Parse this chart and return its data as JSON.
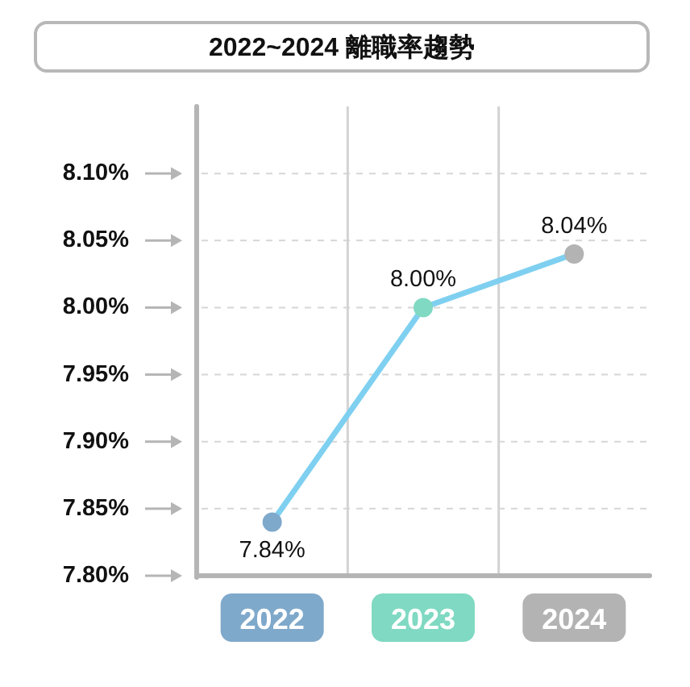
{
  "chart_data": {
    "type": "line",
    "title": "2022~2024 離職率趨勢",
    "categories": [
      "2022",
      "2023",
      "2024"
    ],
    "series": [
      {
        "color": "#7fd0f0",
        "colors": [
          "#7fa9cb",
          "#80d9c2",
          "#b3b3b3"
        ],
        "values": [
          7.84,
          8.0,
          8.04
        ],
        "value_labels": [
          "7.84%",
          "8.00%",
          "8.04%"
        ]
      }
    ],
    "ylim": [
      7.8,
      8.15
    ],
    "yticks": [
      {
        "value": 7.8,
        "label": "7.80%"
      },
      {
        "value": 7.85,
        "label": "7.85%"
      },
      {
        "value": 7.9,
        "label": "7.90%"
      },
      {
        "value": 7.95,
        "label": "7.95%"
      },
      {
        "value": 8.0,
        "label": "8.00%"
      },
      {
        "value": 8.05,
        "label": "8.05%"
      },
      {
        "value": 8.1,
        "label": "8.10%"
      }
    ],
    "grid": true,
    "marker": "circle",
    "line_style": "solid"
  }
}
